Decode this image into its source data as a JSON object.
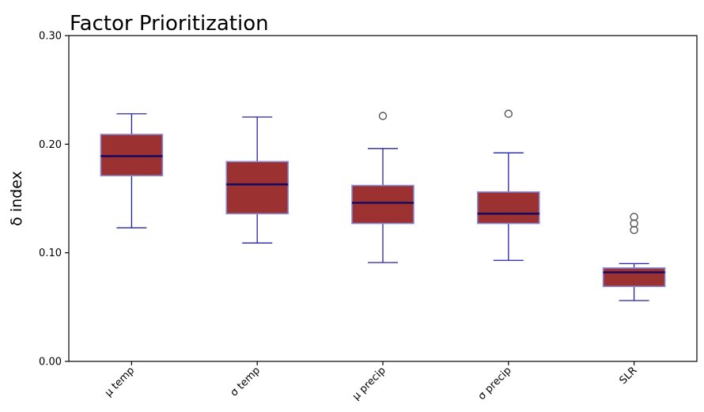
{
  "chart_data": {
    "type": "box",
    "title": "Factor Prioritization",
    "xlabel": "",
    "ylabel": "δ index",
    "ylim": [
      0,
      0.3
    ],
    "yticks": [
      "0.00",
      "0.10",
      "0.20",
      "0.30"
    ],
    "y_tick_values": [
      0,
      0.1,
      0.2,
      0.3
    ],
    "grid": false,
    "legend": "none",
    "categories": [
      "μ temp",
      "σ temp",
      "μ precip",
      "σ precip",
      "SLR"
    ],
    "boxes": [
      {
        "category": "μ temp",
        "whisker_low": 0.123,
        "q1": 0.171,
        "median": 0.189,
        "q3": 0.209,
        "whisker_high": 0.228,
        "outliers": []
      },
      {
        "category": "σ temp",
        "whisker_low": 0.109,
        "q1": 0.136,
        "median": 0.163,
        "q3": 0.184,
        "whisker_high": 0.225,
        "outliers": []
      },
      {
        "category": "μ precip",
        "whisker_low": 0.091,
        "q1": 0.127,
        "median": 0.146,
        "q3": 0.162,
        "whisker_high": 0.196,
        "outliers": [
          0.226
        ]
      },
      {
        "category": "σ precip",
        "whisker_low": 0.093,
        "q1": 0.127,
        "median": 0.136,
        "q3": 0.156,
        "whisker_high": 0.192,
        "outliers": [
          0.228
        ]
      },
      {
        "category": "SLR",
        "whisker_low": 0.056,
        "q1": 0.069,
        "median": 0.082,
        "q3": 0.086,
        "whisker_high": 0.09,
        "outliers": [
          0.121,
          0.127,
          0.133
        ]
      }
    ],
    "colors": {
      "box_fill": "#9b3131",
      "box_edge": "#8888d8",
      "median": "#1a0a5e",
      "whisker": "#2222aa",
      "outlier_edge": "#555555",
      "axis": "#000000"
    }
  }
}
